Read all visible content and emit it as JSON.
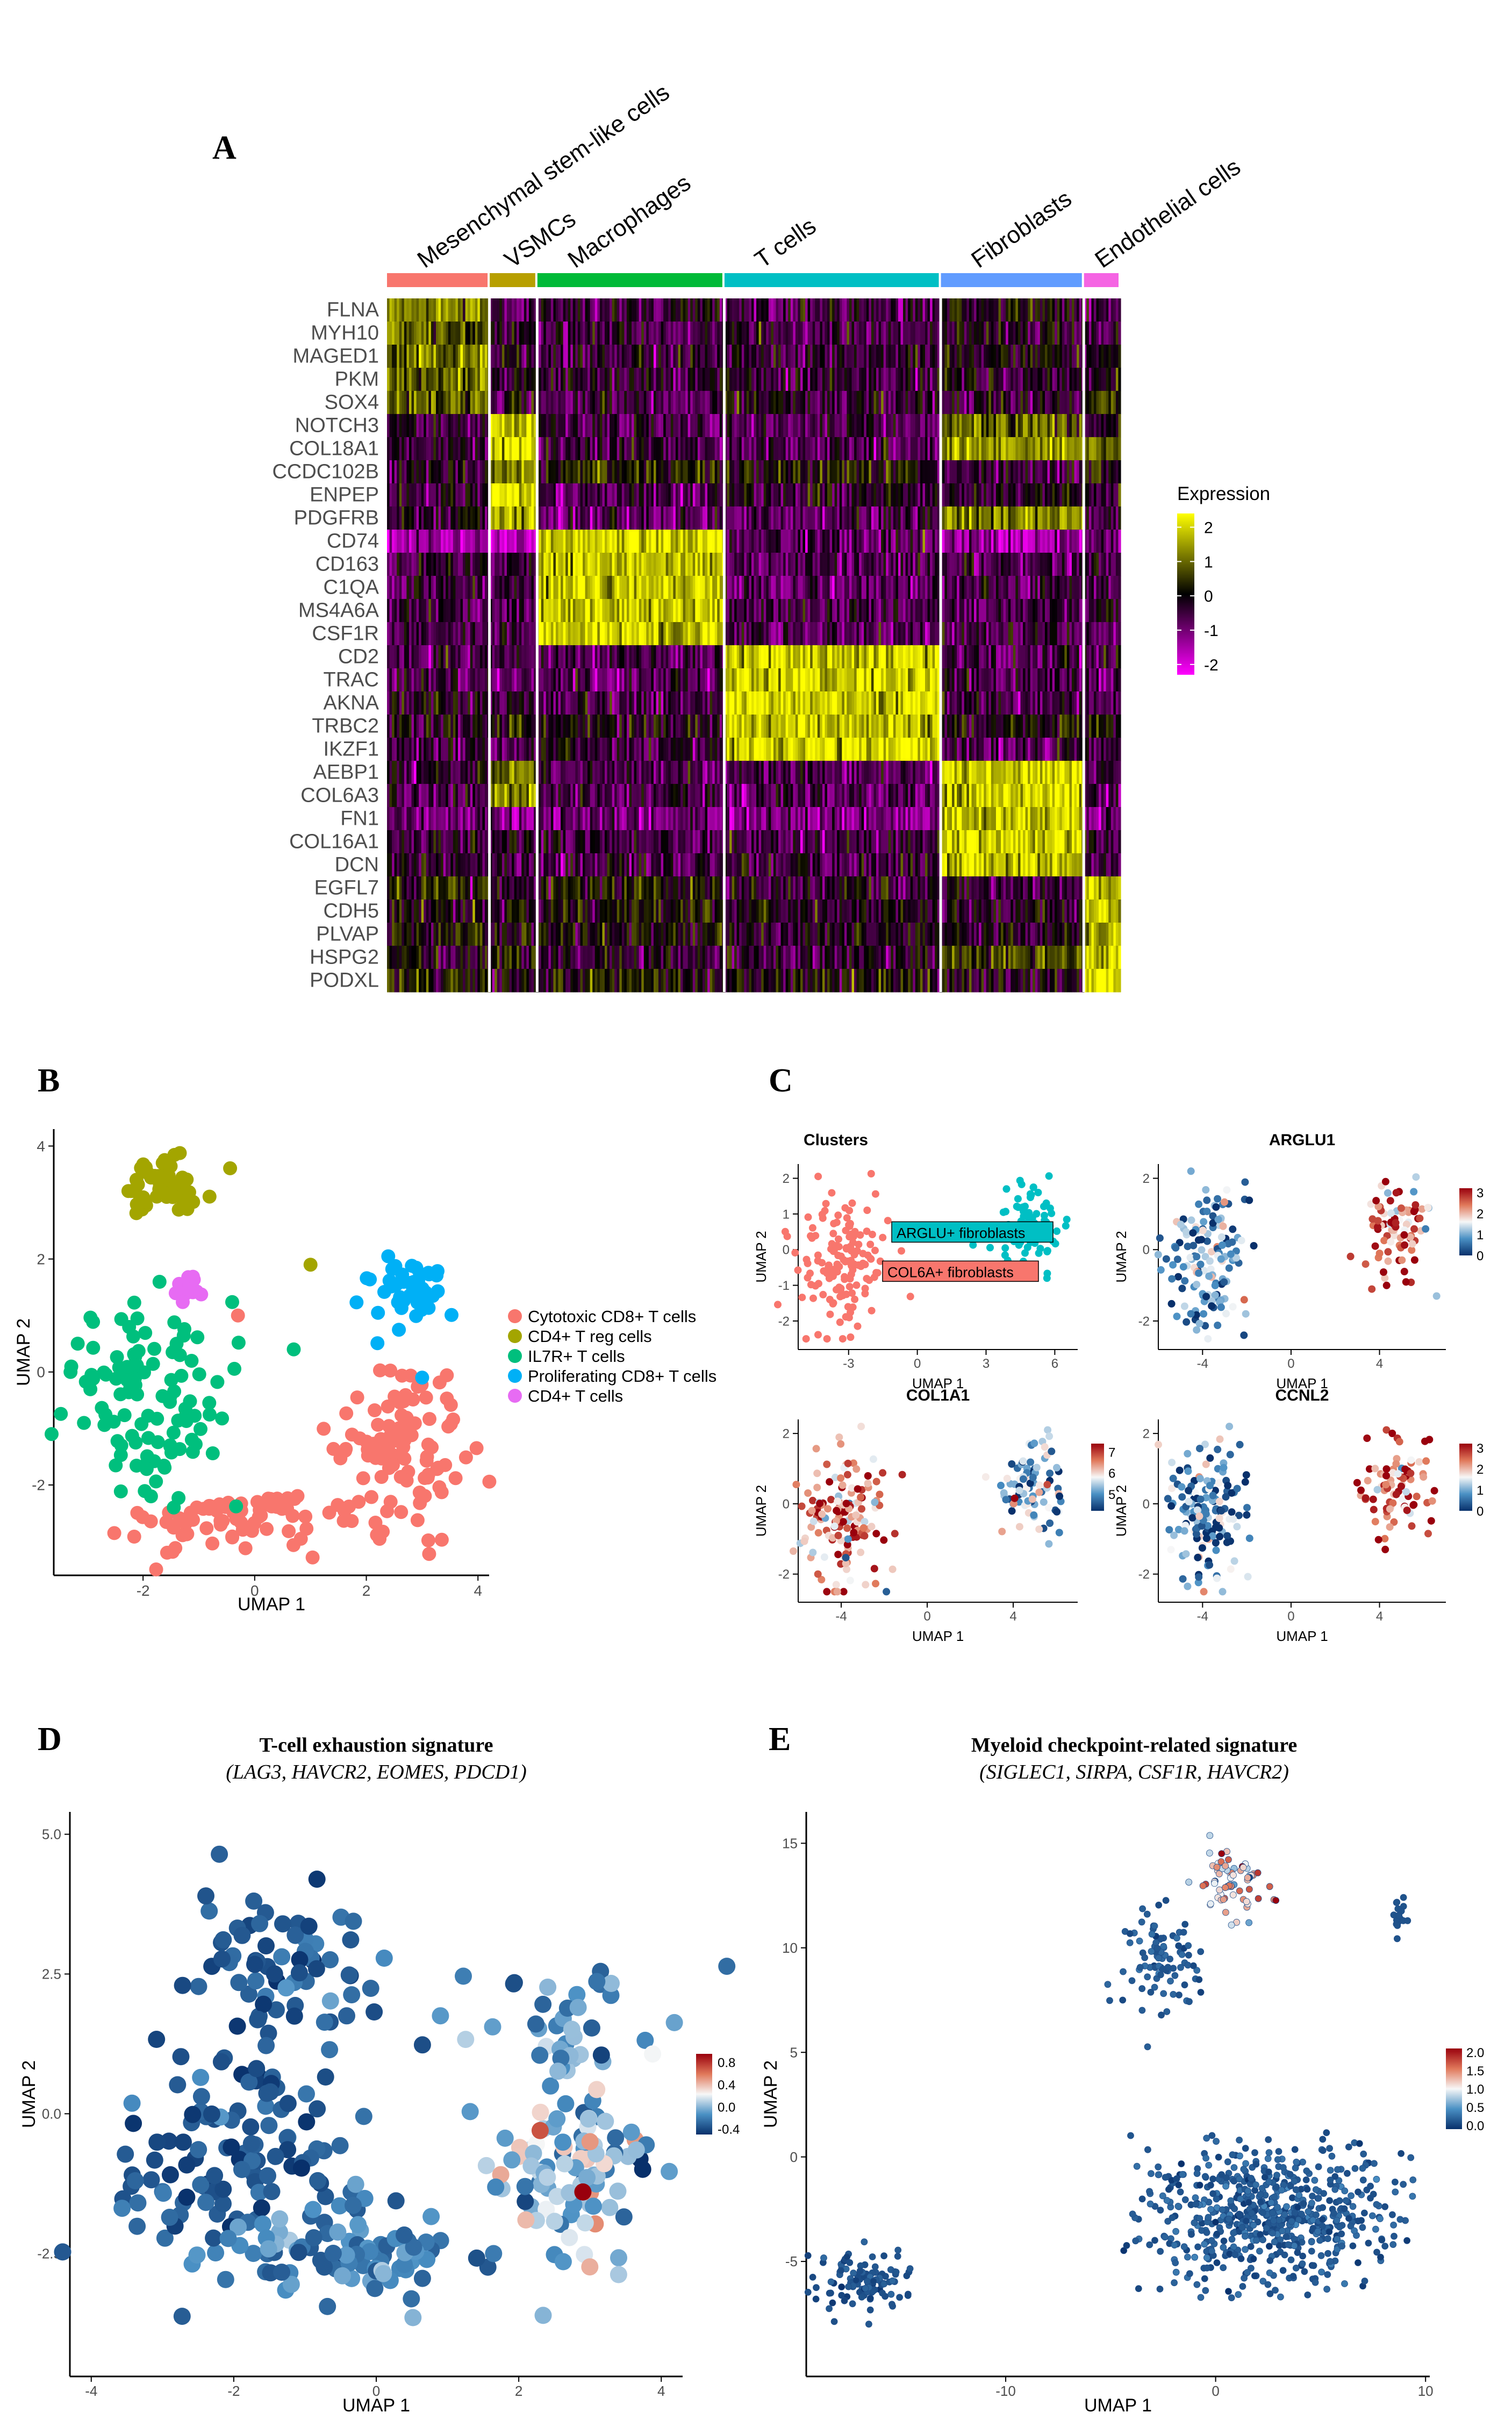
{
  "panels": {
    "A": {
      "letter": "A",
      "chart_data": {
        "type": "heatmap",
        "cell_types": [
          "Mesenchymal stem-like cells",
          "VSMCs",
          "Macrophages",
          "T cells",
          "Fibroblasts",
          "Endothelial cells"
        ],
        "cell_type_colors": [
          "#f8766d",
          "#b79f00",
          "#00ba38",
          "#00bfc4",
          "#619cff",
          "#f564e3"
        ],
        "cell_type_fraction": [
          0.14,
          0.065,
          0.255,
          0.295,
          0.195,
          0.05
        ],
        "genes": [
          "FLNA",
          "MYH10",
          "MAGED1",
          "PKM",
          "SOX4",
          "NOTCH3",
          "COL18A1",
          "CCDC102B",
          "ENPEP",
          "PDGFRB",
          "CD74",
          "CD163",
          "C1QA",
          "MS4A6A",
          "CSF1R",
          "CD2",
          "TRAC",
          "AKNA",
          "TRBC2",
          "IKZF1",
          "AEBP1",
          "COL6A3",
          "FN1",
          "COL16A1",
          "DCN",
          "EGFL7",
          "CDH5",
          "PLVAP",
          "HSPG2",
          "PODXL"
        ],
        "mean_expression": [
          [
            1.2,
            -0.6,
            -0.4,
            -0.5,
            -0.1,
            -0.5
          ],
          [
            1.0,
            -0.2,
            -0.5,
            -0.5,
            -0.2,
            -0.3
          ],
          [
            1.1,
            -0.4,
            -0.5,
            -0.4,
            0.0,
            -0.3
          ],
          [
            0.9,
            -0.3,
            -0.3,
            -0.4,
            -0.3,
            -0.2
          ],
          [
            1.0,
            -0.3,
            -0.6,
            -0.2,
            -0.4,
            0.3
          ],
          [
            -0.5,
            2.0,
            -0.6,
            -0.6,
            0.8,
            -0.3
          ],
          [
            -0.4,
            2.0,
            -0.6,
            -0.7,
            1.4,
            0.9
          ],
          [
            -0.2,
            1.4,
            0.2,
            0.2,
            -0.5,
            0.3
          ],
          [
            -0.3,
            2.0,
            -0.6,
            -0.3,
            -0.2,
            -0.2
          ],
          [
            -0.3,
            1.6,
            -0.8,
            -0.7,
            1.2,
            -0.6
          ],
          [
            -1.5,
            -1.8,
            2.0,
            -0.8,
            -1.4,
            -0.9
          ],
          [
            -0.5,
            -0.6,
            2.0,
            -0.6,
            -0.6,
            -0.4
          ],
          [
            -0.5,
            -0.6,
            2.0,
            -0.7,
            -0.5,
            -0.5
          ],
          [
            -0.4,
            -0.6,
            1.9,
            -0.6,
            -0.5,
            -0.4
          ],
          [
            -0.5,
            -0.7,
            1.9,
            -0.7,
            -0.6,
            -0.5
          ],
          [
            -0.6,
            -0.6,
            -0.6,
            2.0,
            -0.6,
            -0.6
          ],
          [
            -0.5,
            -0.6,
            -0.7,
            2.0,
            -0.6,
            -0.6
          ],
          [
            -0.3,
            -0.4,
            -0.5,
            1.9,
            -0.5,
            -0.4
          ],
          [
            -0.1,
            0.2,
            0.1,
            1.8,
            0.0,
            0.2
          ],
          [
            -0.5,
            -0.6,
            -0.4,
            2.0,
            -0.6,
            -0.6
          ],
          [
            -0.4,
            1.0,
            -0.6,
            -0.7,
            2.0,
            -0.5
          ],
          [
            -0.6,
            1.4,
            -0.5,
            -0.7,
            2.0,
            -0.5
          ],
          [
            -1.0,
            -1.2,
            -1.0,
            -1.2,
            2.0,
            -1.1
          ],
          [
            -0.4,
            -0.5,
            -0.6,
            -0.6,
            1.9,
            -0.3
          ],
          [
            -0.3,
            -0.4,
            -0.5,
            -0.5,
            1.8,
            -0.3
          ],
          [
            0.2,
            -0.3,
            0.2,
            -0.3,
            -0.4,
            2.0
          ],
          [
            0.0,
            -0.1,
            0.0,
            -0.2,
            -0.3,
            2.0
          ],
          [
            0.1,
            -0.2,
            0.0,
            -0.2,
            -0.2,
            2.0
          ],
          [
            -0.2,
            0.2,
            -0.3,
            -0.3,
            0.6,
            2.0
          ],
          [
            0.3,
            0.0,
            0.2,
            0.0,
            -0.2,
            2.0
          ]
        ],
        "legend": {
          "title": "Expression",
          "ticks": [
            "2",
            "1",
            "0",
            "-1",
            "-2"
          ],
          "range": [
            -2.3,
            2.4
          ]
        }
      }
    },
    "B": {
      "letter": "B",
      "chart_data": {
        "type": "scatter",
        "xlabel": "UMAP 1",
        "ylabel": "UMAP 2",
        "xlim": [
          -3.6,
          4.2
        ],
        "ylim": [
          -3.6,
          4.3
        ],
        "xticks": [
          "-2",
          "0",
          "2",
          "4"
        ],
        "yticks": [
          "4",
          "2",
          "0",
          "-2"
        ],
        "series": [
          {
            "name": "Cytotoxic CD8+ T cells",
            "color": "#f8766d",
            "n": 180,
            "center": [
              1.0,
              -1.7
            ],
            "spread": [
              1.9,
              0.9
            ]
          },
          {
            "name": "CD4+ T reg cells",
            "color": "#a3a500",
            "n": 55,
            "center": [
              -1.6,
              3.3
            ],
            "spread": [
              0.7,
              0.55
            ]
          },
          {
            "name": "IL7R+ T cells",
            "color": "#00bf7d",
            "n": 110,
            "center": [
              -2.0,
              -0.5
            ],
            "spread": [
              1.1,
              1.1
            ]
          },
          {
            "name": "Proliferating CD8+ T cells",
            "color": "#00b0f6",
            "n": 45,
            "center": [
              2.8,
              1.5
            ],
            "spread": [
              0.8,
              0.5
            ]
          },
          {
            "name": "CD4+ T cells",
            "color": "#e76bf3",
            "n": 12,
            "center": [
              -1.2,
              1.5
            ],
            "spread": [
              0.3,
              0.2
            ]
          }
        ]
      }
    },
    "C": {
      "letter": "C",
      "subplots": [
        {
          "title": "Clusters",
          "type": "scatter",
          "xticks": [
            "-3",
            "0",
            "3",
            "6"
          ],
          "yticks": [
            "2",
            "1",
            "0",
            "-1",
            "-2"
          ],
          "xlim": [
            -5.2,
            7
          ],
          "ylim": [
            -2.8,
            2.4
          ],
          "xlabel": "UMAP 1",
          "ylabel": "UMAP 2",
          "labels": [
            "ARGLU+ fibroblasts",
            "COL6A+ fibroblasts"
          ],
          "label_colors": [
            "#00bfc4",
            "#f8766d"
          ]
        },
        {
          "title": "ARGLU1",
          "type": "feature",
          "xticks": [
            "-4",
            "0",
            "4"
          ],
          "yticks": [
            "2",
            "0",
            "-2"
          ],
          "xlim": [
            -6,
            7
          ],
          "ylim": [
            -2.8,
            2.4
          ],
          "xlabel": "UMAP 1",
          "ylabel": "UMAP 2",
          "legend_ticks": [
            "3",
            "2",
            "1",
            "0"
          ],
          "legend_range": [
            0,
            3.2
          ],
          "left_value": 0.8,
          "right_value": 2.5
        },
        {
          "title": "COL1A1",
          "type": "feature",
          "xticks": [
            "-4",
            "0",
            "4"
          ],
          "yticks": [
            "2",
            "0",
            "-2"
          ],
          "xlim": [
            -6,
            7
          ],
          "ylim": [
            -2.8,
            2.4
          ],
          "xlabel": "UMAP 1",
          "ylabel": "UMAP 2",
          "legend_ticks": [
            "7",
            "6",
            "5"
          ],
          "legend_range": [
            4.2,
            7.4
          ],
          "left_value": 6.6,
          "right_value": 5.2
        },
        {
          "title": "CCNL2",
          "type": "feature",
          "xticks": [
            "-4",
            "0",
            "4"
          ],
          "yticks": [
            "2",
            "0",
            "-2"
          ],
          "xlim": [
            -6,
            7
          ],
          "ylim": [
            -2.8,
            2.4
          ],
          "xlabel": "UMAP 1",
          "ylabel": "UMAP 2",
          "legend_ticks": [
            "3",
            "2",
            "1",
            "0"
          ],
          "legend_range": [
            0,
            3.2
          ],
          "left_value": 0.7,
          "right_value": 2.6
        }
      ]
    },
    "D": {
      "letter": "D",
      "title_line1": "T-cell exhaustion signature",
      "title_line2": "(LAG3, HAVCR2, EOMES, PDCD1)",
      "chart_data": {
        "type": "scatter",
        "xlabel": "UMAP 1",
        "ylabel": "UMAP 2",
        "xlim": [
          -4.3,
          4.3
        ],
        "ylim": [
          -4.7,
          5.4
        ],
        "xticks": [
          "-4",
          "-2",
          "0",
          "2",
          "4"
        ],
        "yticks": [
          "5.0",
          "2.5",
          "0.0",
          "-2.5"
        ],
        "legend_ticks": [
          "0.8",
          "0.4",
          "0.0",
          "-0.4"
        ],
        "legend_range": [
          -0.5,
          0.95
        ]
      }
    },
    "E": {
      "letter": "E",
      "title_line1": "Myeloid checkpoint-related signature",
      "title_line2": "(SIGLEC1, SIRPA, CSF1R, HAVCR2)",
      "chart_data": {
        "type": "scatter",
        "xlabel": "UMAP 1",
        "ylabel": "UMAP 2",
        "xlim": [
          -19.5,
          10.2
        ],
        "ylim": [
          -10.5,
          16.5
        ],
        "xticks": [
          "-10",
          "0",
          "10"
        ],
        "yticks": [
          "15",
          "10",
          "5",
          "0",
          "-5"
        ],
        "legend_ticks": [
          "2.0",
          "1.5",
          "1.0",
          "0.5",
          "0.0"
        ],
        "legend_range": [
          -0.1,
          2.1
        ]
      }
    }
  }
}
